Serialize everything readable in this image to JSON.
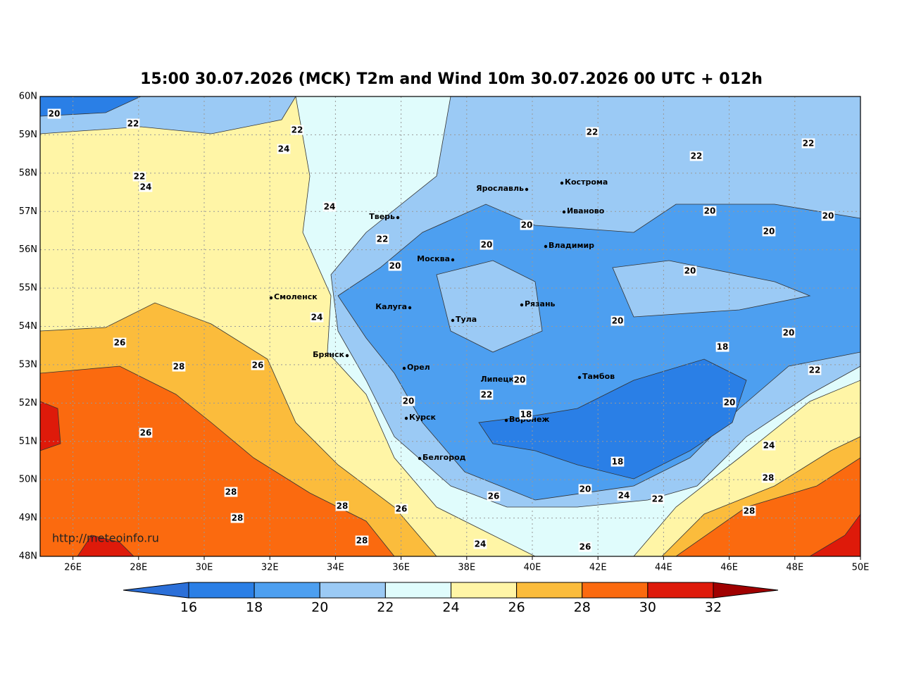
{
  "map": {
    "title": "15:00 30.07.2026 (MCK) T2m and Wind 10m 30.07.2026 00 UTC + 012h",
    "url": "http://meteoinfo.ru",
    "lonlim": [
      25,
      50
    ],
    "latlim": [
      48,
      60
    ],
    "lon_ticks": [
      {
        "value": 26,
        "label": "26E"
      },
      {
        "value": 28,
        "label": "28E"
      },
      {
        "value": 30,
        "label": "30E"
      },
      {
        "value": 32,
        "label": "32E"
      },
      {
        "value": 34,
        "label": "34E"
      },
      {
        "value": 36,
        "label": "36E"
      },
      {
        "value": 38,
        "label": "38E"
      },
      {
        "value": 40,
        "label": "40E"
      },
      {
        "value": 42,
        "label": "42E"
      },
      {
        "value": 44,
        "label": "44E"
      },
      {
        "value": 46,
        "label": "46E"
      },
      {
        "value": 48,
        "label": "48E"
      },
      {
        "value": 50,
        "label": "50E"
      }
    ],
    "lat_ticks": [
      {
        "value": 48,
        "label": "48N"
      },
      {
        "value": 49,
        "label": "49N"
      },
      {
        "value": 50,
        "label": "50N"
      },
      {
        "value": 51,
        "label": "51N"
      },
      {
        "value": 52,
        "label": "52N"
      },
      {
        "value": 53,
        "label": "53N"
      },
      {
        "value": 54,
        "label": "54N"
      },
      {
        "value": 55,
        "label": "55N"
      },
      {
        "value": 56,
        "label": "56N"
      },
      {
        "value": 57,
        "label": "57N"
      },
      {
        "value": 58,
        "label": "58N"
      },
      {
        "value": 59,
        "label": "59N"
      },
      {
        "value": 60,
        "label": "60N"
      }
    ],
    "cities": [
      "Ярославль",
      "Кострома",
      "Иваново",
      "Тверь",
      "Владимир",
      "Москва",
      "Смоленск",
      "Калуга",
      "Рязань",
      "Тула",
      "Брянск",
      "Орел",
      "Липецк",
      "Тамбов",
      "Курск",
      "Воронеж",
      "Белгород"
    ],
    "contour_labels": [
      20,
      22,
      22,
      24,
      22,
      24,
      24,
      22,
      22,
      22,
      22,
      20,
      20,
      20,
      20,
      20,
      20,
      20,
      20,
      20,
      18,
      20,
      22,
      18,
      20,
      18,
      20,
      22,
      24,
      22,
      24,
      26,
      28,
      26,
      26,
      28,
      26,
      28,
      28,
      28,
      28,
      28,
      26,
      24,
      26,
      20,
      20,
      24
    ]
  },
  "colorbar": {
    "levels": [
      16,
      18,
      20,
      22,
      24,
      26,
      28,
      30,
      32
    ],
    "colors": [
      "#2a7fe6",
      "#4d9ff0",
      "#9bcaf5",
      "#e0fcfc",
      "#fff5a6",
      "#fbbc3c",
      "#fb6a0f",
      "#de1a0a"
    ],
    "under_color": "#2b6fd8",
    "over_color": "#a00000"
  }
}
